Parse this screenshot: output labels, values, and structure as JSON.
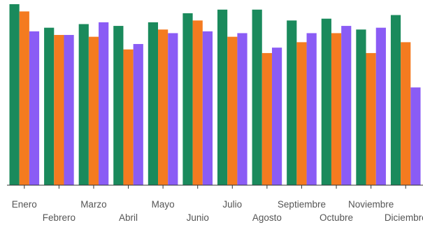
{
  "chart_data": {
    "type": "bar",
    "title": "",
    "xlabel": "",
    "ylabel": "",
    "categories": [
      "Enero",
      "Febrero",
      "Marzo",
      "Abril",
      "Mayo",
      "Junio",
      "Julio",
      "Agosto",
      "Septiembre",
      "Octubre",
      "Noviembre",
      "Diciembre"
    ],
    "ylim": [
      0,
      100
    ],
    "grid": false,
    "legend": "none",
    "series": [
      {
        "color": "#1a8a5c",
        "values": [
          100,
          87,
          89,
          88,
          90,
          95,
          97,
          97,
          91,
          92,
          86,
          94
        ]
      },
      {
        "color": "#f47b20",
        "values": [
          96,
          83,
          82,
          75,
          86,
          91,
          82,
          73,
          79,
          84,
          73,
          79
        ]
      },
      {
        "color": "#8a5cf5",
        "values": [
          85,
          83,
          90,
          78,
          84,
          85,
          84,
          76,
          84,
          88,
          87,
          54
        ]
      }
    ]
  }
}
